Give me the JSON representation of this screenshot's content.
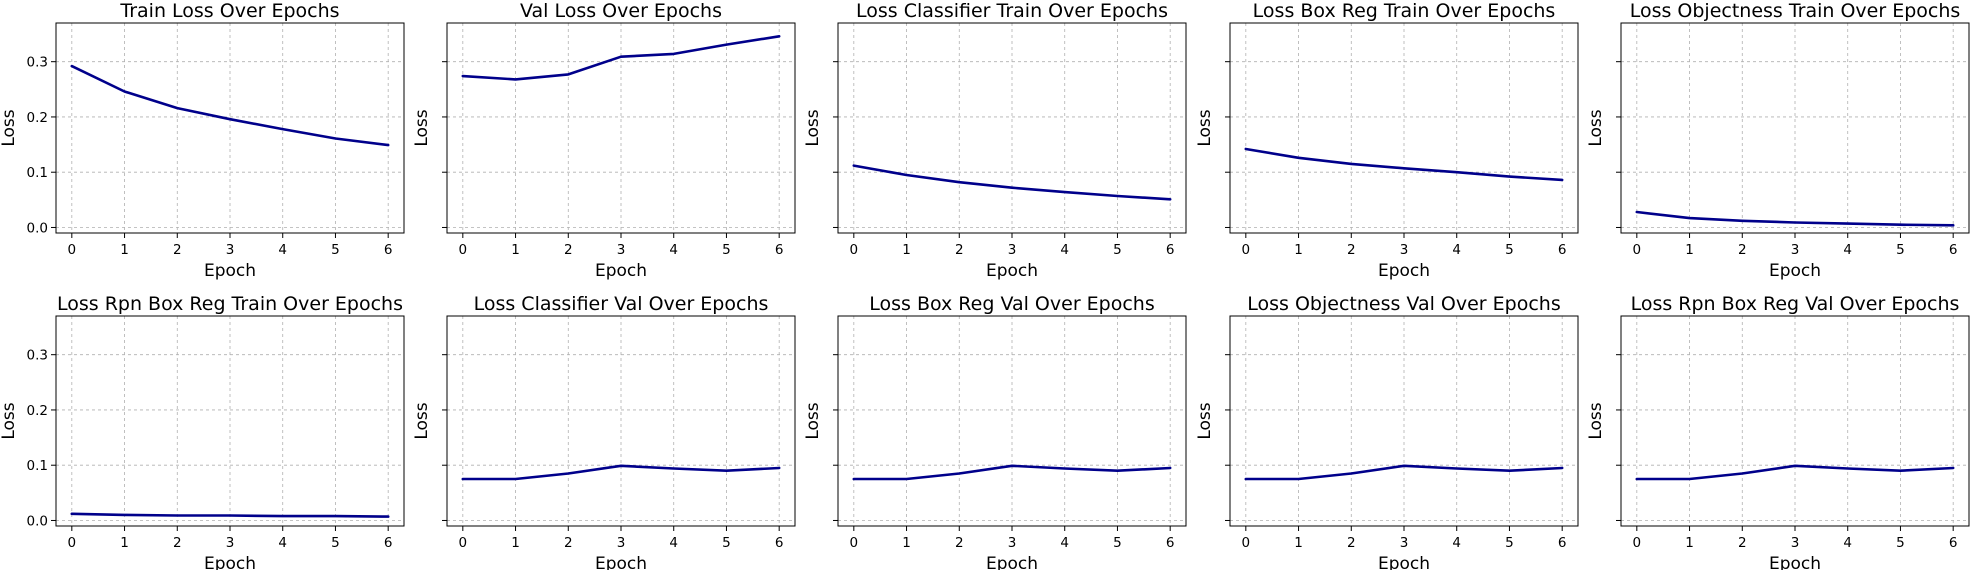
{
  "chart_data": [
    {
      "type": "line",
      "title": "Train Loss Over Epochs",
      "xlabel": "Epoch",
      "ylabel": "Loss",
      "x": [
        0,
        1,
        2,
        3,
        4,
        5,
        6
      ],
      "values": [
        0.292,
        0.246,
        0.216,
        0.196,
        0.178,
        0.161,
        0.149
      ],
      "xlim": [
        -0.3,
        6.3
      ],
      "ylim": [
        -0.01,
        0.37
      ],
      "xticks": [
        "0",
        "1",
        "2",
        "3",
        "4",
        "5",
        "6"
      ],
      "yticks": [
        "0.0",
        "0.1",
        "0.2",
        "0.3"
      ],
      "show_ytick_labels": true,
      "grid": true,
      "color": "#00008b"
    },
    {
      "type": "line",
      "title": "Val Loss Over Epochs",
      "xlabel": "Epoch",
      "ylabel": "Loss",
      "x": [
        0,
        1,
        2,
        3,
        4,
        5,
        6
      ],
      "values": [
        0.274,
        0.268,
        0.277,
        0.309,
        0.314,
        0.331,
        0.346
      ],
      "xlim": [
        -0.3,
        6.3
      ],
      "ylim": [
        -0.01,
        0.37
      ],
      "xticks": [
        "0",
        "1",
        "2",
        "3",
        "4",
        "5",
        "6"
      ],
      "yticks": [
        "0.0",
        "0.1",
        "0.2",
        "0.3"
      ],
      "show_ytick_labels": false,
      "grid": true,
      "color": "#00008b"
    },
    {
      "type": "line",
      "title": "Loss Classifier Train Over Epochs",
      "xlabel": "Epoch",
      "ylabel": "Loss",
      "x": [
        0,
        1,
        2,
        3,
        4,
        5,
        6
      ],
      "values": [
        0.112,
        0.095,
        0.082,
        0.072,
        0.064,
        0.057,
        0.051
      ],
      "xlim": [
        -0.3,
        6.3
      ],
      "ylim": [
        -0.01,
        0.37
      ],
      "xticks": [
        "0",
        "1",
        "2",
        "3",
        "4",
        "5",
        "6"
      ],
      "yticks": [
        "0.0",
        "0.1",
        "0.2",
        "0.3"
      ],
      "show_ytick_labels": false,
      "grid": true,
      "color": "#00008b"
    },
    {
      "type": "line",
      "title": "Loss Box Reg Train Over Epochs",
      "xlabel": "Epoch",
      "ylabel": "Loss",
      "x": [
        0,
        1,
        2,
        3,
        4,
        5,
        6
      ],
      "values": [
        0.142,
        0.126,
        0.115,
        0.107,
        0.1,
        0.092,
        0.086
      ],
      "xlim": [
        -0.3,
        6.3
      ],
      "ylim": [
        -0.01,
        0.37
      ],
      "xticks": [
        "0",
        "1",
        "2",
        "3",
        "4",
        "5",
        "6"
      ],
      "yticks": [
        "0.0",
        "0.1",
        "0.2",
        "0.3"
      ],
      "show_ytick_labels": false,
      "grid": true,
      "color": "#00008b"
    },
    {
      "type": "line",
      "title": "Loss Objectness Train Over Epochs",
      "xlabel": "Epoch",
      "ylabel": "Loss",
      "x": [
        0,
        1,
        2,
        3,
        4,
        5,
        6
      ],
      "values": [
        0.028,
        0.017,
        0.012,
        0.009,
        0.007,
        0.005,
        0.004
      ],
      "xlim": [
        -0.3,
        6.3
      ],
      "ylim": [
        -0.01,
        0.37
      ],
      "xticks": [
        "0",
        "1",
        "2",
        "3",
        "4",
        "5",
        "6"
      ],
      "yticks": [
        "0.0",
        "0.1",
        "0.2",
        "0.3"
      ],
      "show_ytick_labels": false,
      "grid": true,
      "color": "#00008b"
    },
    {
      "type": "line",
      "title": "Loss Rpn Box Reg Train Over Epochs",
      "xlabel": "Epoch",
      "ylabel": "Loss",
      "x": [
        0,
        1,
        2,
        3,
        4,
        5,
        6
      ],
      "values": [
        0.012,
        0.01,
        0.009,
        0.009,
        0.008,
        0.008,
        0.007
      ],
      "xlim": [
        -0.3,
        6.3
      ],
      "ylim": [
        -0.01,
        0.37
      ],
      "xticks": [
        "0",
        "1",
        "2",
        "3",
        "4",
        "5",
        "6"
      ],
      "yticks": [
        "0.0",
        "0.1",
        "0.2",
        "0.3"
      ],
      "show_ytick_labels": true,
      "grid": true,
      "color": "#00008b"
    },
    {
      "type": "line",
      "title": "Loss Classifier Val Over Epochs",
      "xlabel": "Epoch",
      "ylabel": "Loss",
      "x": [
        0,
        1,
        2,
        3,
        4,
        5,
        6
      ],
      "values": [
        0.075,
        0.075,
        0.085,
        0.099,
        0.094,
        0.09,
        0.095
      ],
      "xlim": [
        -0.3,
        6.3
      ],
      "ylim": [
        -0.01,
        0.37
      ],
      "xticks": [
        "0",
        "1",
        "2",
        "3",
        "4",
        "5",
        "6"
      ],
      "yticks": [
        "0.0",
        "0.1",
        "0.2",
        "0.3"
      ],
      "show_ytick_labels": false,
      "grid": true,
      "color": "#00008b"
    },
    {
      "type": "line",
      "title": "Loss Box Reg Val Over Epochs",
      "xlabel": "Epoch",
      "ylabel": "Loss",
      "x": [
        0,
        1,
        2,
        3,
        4,
        5,
        6
      ],
      "values": [
        0.075,
        0.075,
        0.085,
        0.099,
        0.094,
        0.09,
        0.095
      ],
      "xlim": [
        -0.3,
        6.3
      ],
      "ylim": [
        -0.01,
        0.37
      ],
      "xticks": [
        "0",
        "1",
        "2",
        "3",
        "4",
        "5",
        "6"
      ],
      "yticks": [
        "0.0",
        "0.1",
        "0.2",
        "0.3"
      ],
      "show_ytick_labels": false,
      "grid": true,
      "color": "#00008b"
    },
    {
      "type": "line",
      "title": "Loss Objectness Val Over Epochs",
      "xlabel": "Epoch",
      "ylabel": "Loss",
      "x": [
        0,
        1,
        2,
        3,
        4,
        5,
        6
      ],
      "values": [
        0.075,
        0.075,
        0.085,
        0.099,
        0.094,
        0.09,
        0.095
      ],
      "xlim": [
        -0.3,
        6.3
      ],
      "ylim": [
        -0.01,
        0.37
      ],
      "xticks": [
        "0",
        "1",
        "2",
        "3",
        "4",
        "5",
        "6"
      ],
      "yticks": [
        "0.0",
        "0.1",
        "0.2",
        "0.3"
      ],
      "show_ytick_labels": false,
      "grid": true,
      "color": "#00008b"
    },
    {
      "type": "line",
      "title": "Loss Rpn Box Reg Val Over Epochs",
      "xlabel": "Epoch",
      "ylabel": "Loss",
      "x": [
        0,
        1,
        2,
        3,
        4,
        5,
        6
      ],
      "values": [
        0.075,
        0.075,
        0.085,
        0.099,
        0.094,
        0.09,
        0.095
      ],
      "xlim": [
        -0.3,
        6.3
      ],
      "ylim": [
        -0.01,
        0.37
      ],
      "xticks": [
        "0",
        "1",
        "2",
        "3",
        "4",
        "5",
        "6"
      ],
      "yticks": [
        "0.0",
        "0.1",
        "0.2",
        "0.3"
      ],
      "show_ytick_labels": false,
      "grid": true,
      "color": "#00008b"
    }
  ]
}
